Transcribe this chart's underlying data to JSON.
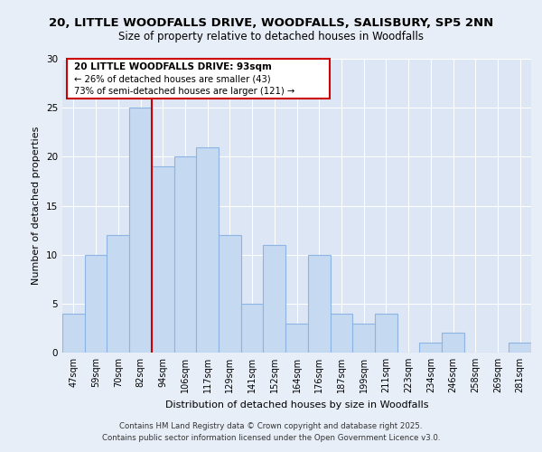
{
  "title_line1": "20, LITTLE WOODFALLS DRIVE, WOODFALLS, SALISBURY, SP5 2NN",
  "title_line2": "Size of property relative to detached houses in Woodfalls",
  "xlabel": "Distribution of detached houses by size in Woodfalls",
  "ylabel": "Number of detached properties",
  "categories": [
    "47sqm",
    "59sqm",
    "70sqm",
    "82sqm",
    "94sqm",
    "106sqm",
    "117sqm",
    "129sqm",
    "141sqm",
    "152sqm",
    "164sqm",
    "176sqm",
    "187sqm",
    "199sqm",
    "211sqm",
    "223sqm",
    "234sqm",
    "246sqm",
    "258sqm",
    "269sqm",
    "281sqm"
  ],
  "values": [
    4,
    10,
    12,
    25,
    19,
    20,
    21,
    12,
    5,
    11,
    3,
    10,
    4,
    3,
    4,
    0,
    1,
    2,
    0,
    0,
    1
  ],
  "bar_color": "#c5d9f1",
  "bar_edge_color": "#8db4e2",
  "bg_color": "#e8eef7",
  "plot_bg_color": "#dce6f4",
  "grid_color": "#ffffff",
  "vline_color": "#cc0000",
  "ylim": [
    0,
    30
  ],
  "yticks": [
    0,
    5,
    10,
    15,
    20,
    25,
    30
  ],
  "annotation_title": "20 LITTLE WOODFALLS DRIVE: 93sqm",
  "annotation_line1": "← 26% of detached houses are smaller (43)",
  "annotation_line2": "73% of semi-detached houses are larger (121) →",
  "footer1": "Contains HM Land Registry data © Crown copyright and database right 2025.",
  "footer2": "Contains public sector information licensed under the Open Government Licence v3.0."
}
